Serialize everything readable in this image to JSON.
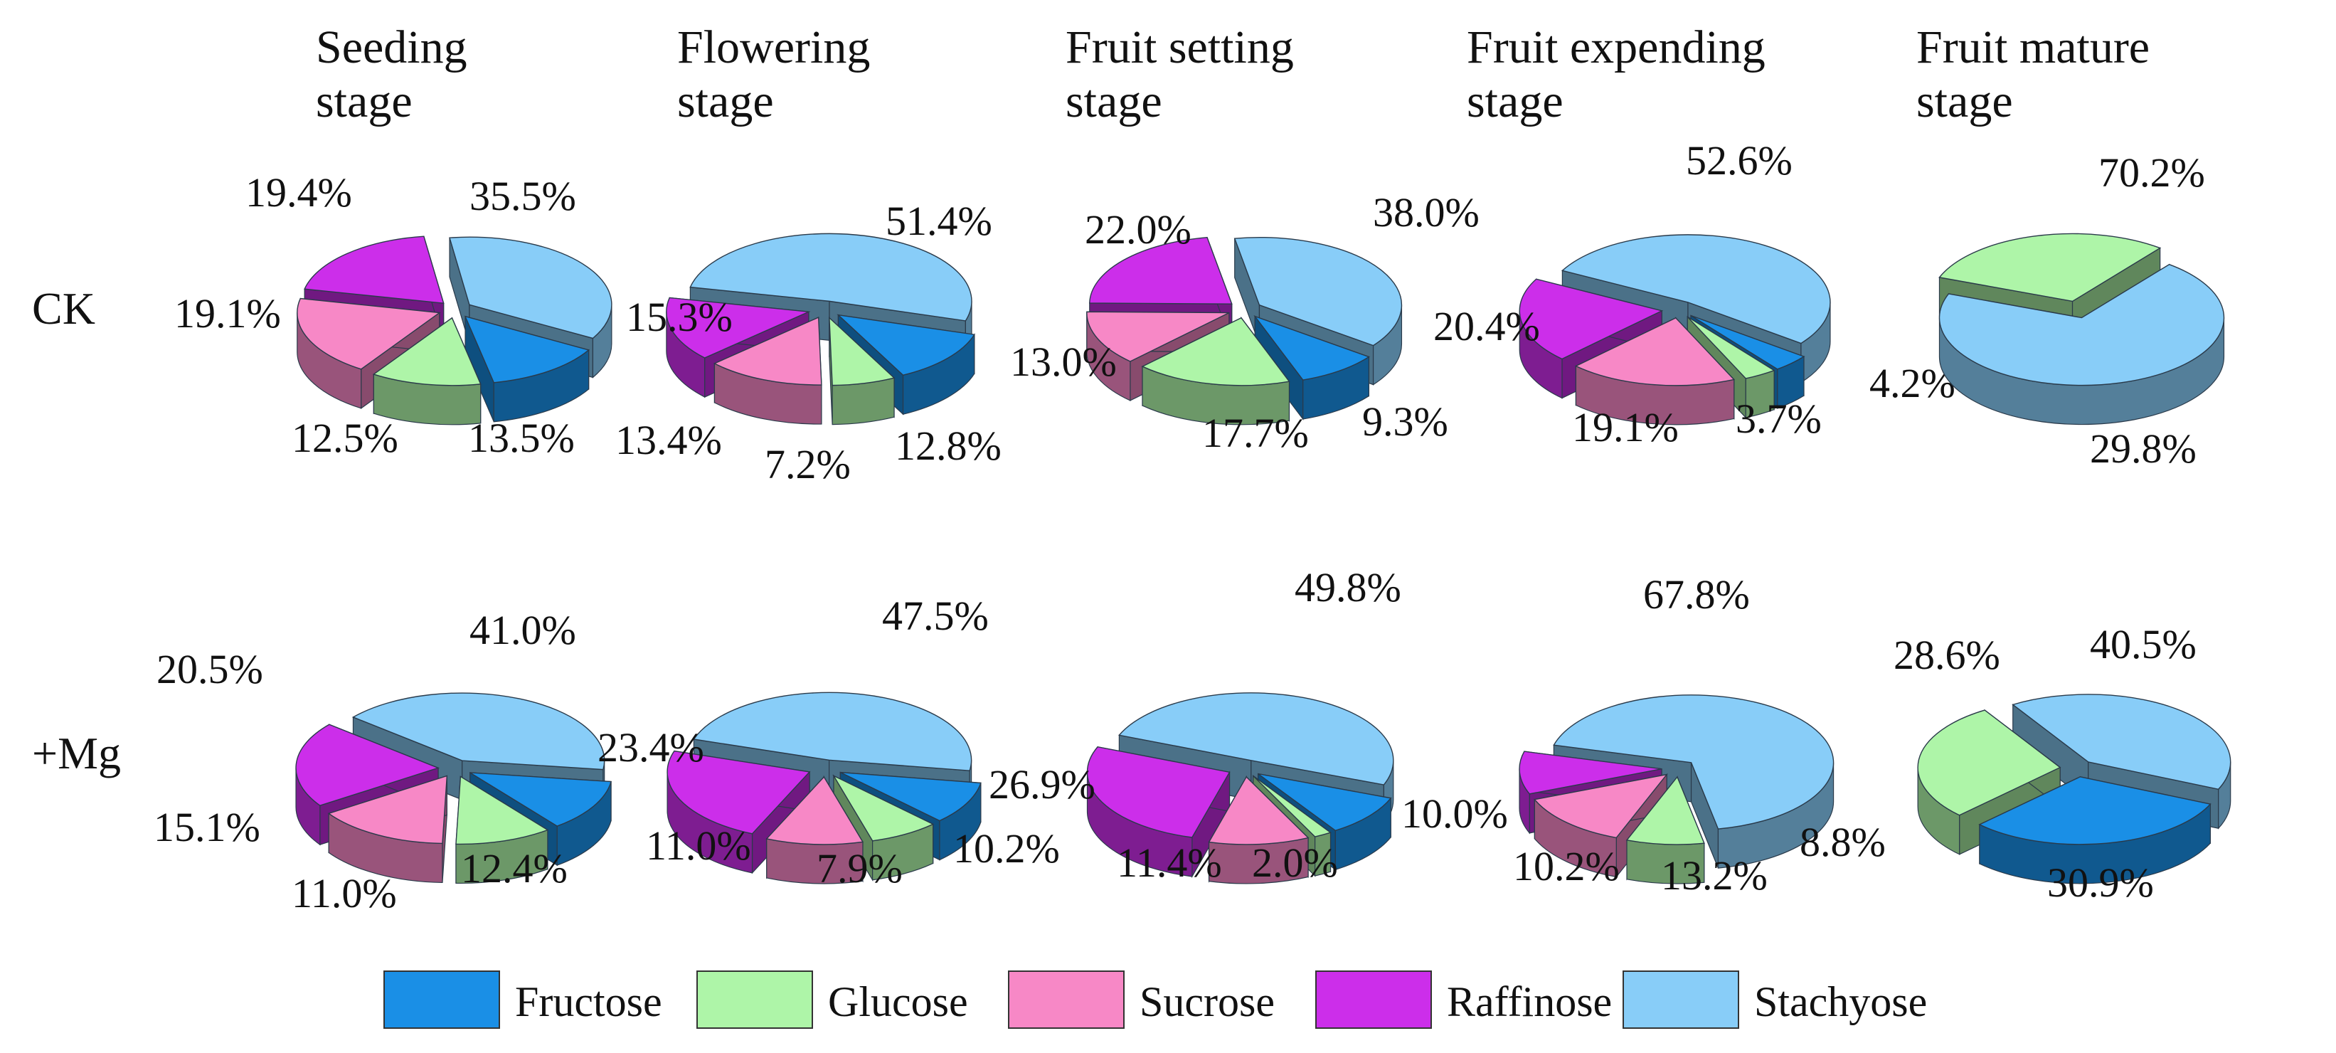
{
  "chart_data": {
    "type": "pie",
    "title": "",
    "stages": [
      [
        "Seeding",
        "stage"
      ],
      [
        "Flowering",
        "stage"
      ],
      [
        "Fruit setting",
        "stage"
      ],
      [
        "Fruit expending",
        "stage"
      ],
      [
        "Fruit mature",
        "stage"
      ]
    ],
    "rows": [
      "CK",
      "+Mg"
    ],
    "sugars": [
      "Fructose",
      "Glucose",
      "Sucrose",
      "Raffinose",
      "Stachyose"
    ],
    "colors": {
      "Fructose": "#1a8fe6",
      "Glucose": "#aef5a8",
      "Sucrose": "#f788c6",
      "Raffinose": "#cc2eea",
      "Stachyose": "#88cdf8"
    },
    "values": {
      "CK": [
        {
          "Fructose": 13.5,
          "Glucose": 12.5,
          "Sucrose": 19.1,
          "Raffinose": 19.4,
          "Stachyose": 35.5
        },
        {
          "Fructose": 12.8,
          "Glucose": 7.2,
          "Sucrose": 13.4,
          "Raffinose": 15.3,
          "Stachyose": 51.4
        },
        {
          "Fructose": 9.3,
          "Glucose": 17.7,
          "Sucrose": 13.0,
          "Raffinose": 22.0,
          "Stachyose": 38.0
        },
        {
          "Fructose": 4.2,
          "Glucose": 3.7,
          "Sucrose": 19.1,
          "Raffinose": 20.4,
          "Stachyose": 52.6
        },
        {
          "Fructose": null,
          "Glucose": 29.8,
          "Sucrose": null,
          "Raffinose": null,
          "Stachyose": 70.2
        }
      ],
      "+Mg": [
        {
          "Fructose": 12.4,
          "Glucose": 11.0,
          "Sucrose": 15.1,
          "Raffinose": 20.5,
          "Stachyose": 41.0
        },
        {
          "Fructose": 10.2,
          "Glucose": 7.9,
          "Sucrose": 11.0,
          "Raffinose": 23.4,
          "Stachyose": 47.5
        },
        {
          "Fructose": 10.0,
          "Glucose": 2.0,
          "Sucrose": 11.4,
          "Raffinose": 26.9,
          "Stachyose": 49.8
        },
        {
          "Fructose": null,
          "Glucose": 8.8,
          "Sucrose": 13.2,
          "Raffinose": 10.2,
          "Stachyose": 67.8
        },
        {
          "Fructose": 30.9,
          "Glucose": 28.6,
          "Sucrose": null,
          "Raffinose": null,
          "Stachyose": 40.5
        }
      ]
    },
    "legend": [
      "Fructose",
      "Glucose",
      "Sucrose",
      "Raffinose",
      "Stachyose"
    ],
    "legend_position": "bottom"
  }
}
